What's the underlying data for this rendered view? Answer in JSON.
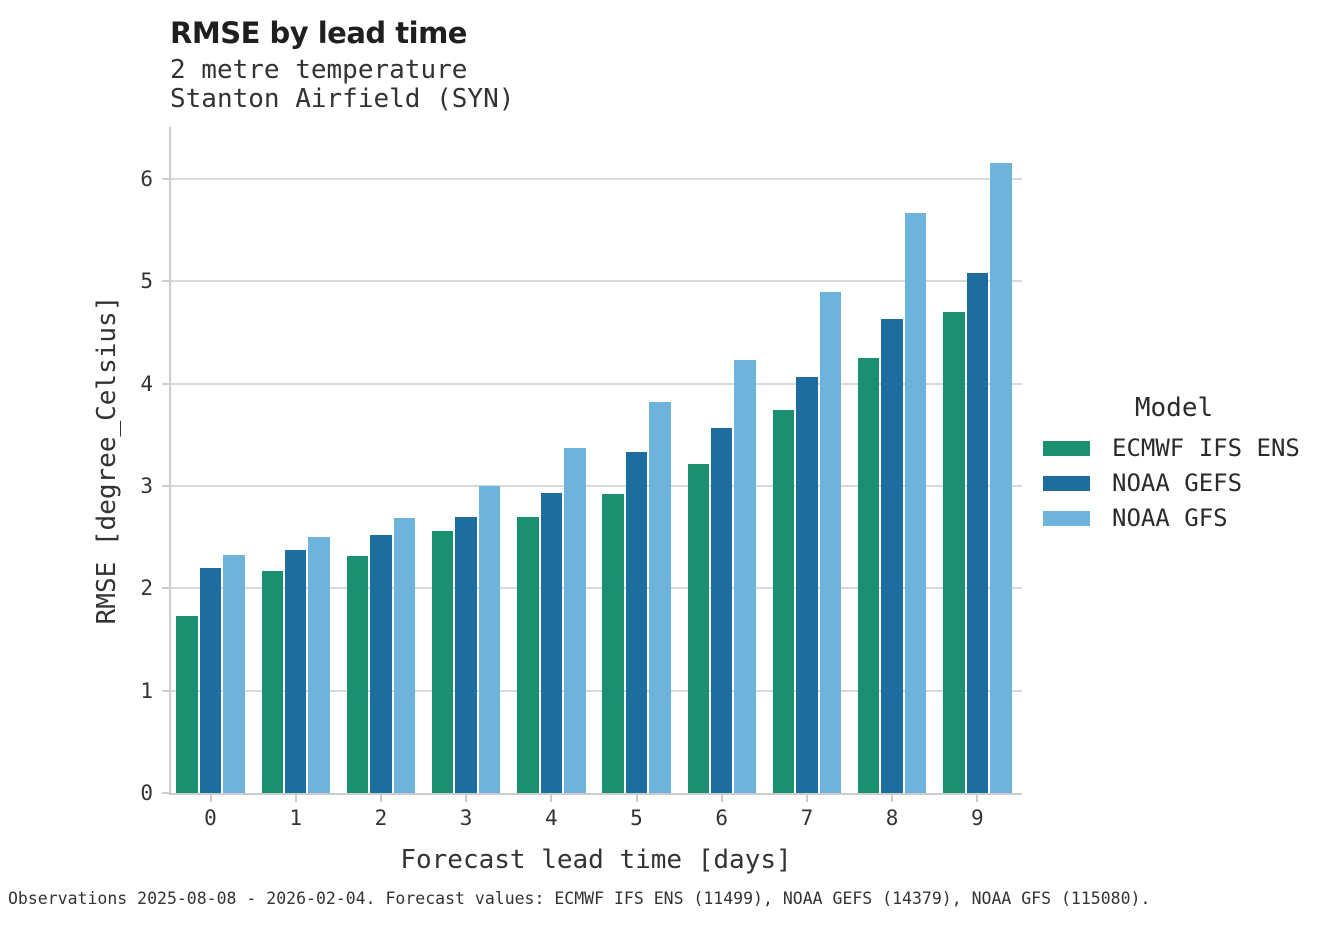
{
  "header": {
    "title": "RMSE by lead time",
    "subtitle_line1": "2 metre temperature",
    "subtitle_line2": "Stanton Airfield (SYN)"
  },
  "footer": {
    "text": "Observations 2025-08-08 - 2026-02-04. Forecast values: ECMWF IFS ENS (11499), NOAA GEFS (14379), NOAA GFS (115080)."
  },
  "colors": {
    "grid": "#d9d9d9",
    "spine": "#cccccc",
    "green": "#1a9070",
    "dark_blue": "#1d6e9e",
    "light_blue": "#6db3dc"
  },
  "chart_data": {
    "type": "bar",
    "title": "RMSE by lead time",
    "subtitle": [
      "2 metre temperature",
      "Stanton Airfield (SYN)"
    ],
    "categories": [
      "0",
      "1",
      "2",
      "3",
      "4",
      "5",
      "6",
      "7",
      "8",
      "9"
    ],
    "xlabel": "Forecast lead time [days]",
    "ylabel": "RMSE [degree_Celsius]",
    "ylim": [
      0,
      6.5
    ],
    "yticks": [
      0,
      1,
      2,
      3,
      4,
      5,
      6
    ],
    "grid": true,
    "legend_title": "Model",
    "legend_position": "right",
    "series": [
      {
        "name": "ECMWF IFS ENS",
        "color": "#1a9070",
        "values": [
          1.73,
          2.17,
          2.32,
          2.56,
          2.7,
          2.92,
          3.22,
          3.74,
          4.25,
          4.7
        ]
      },
      {
        "name": "NOAA GEFS",
        "color": "#1d6e9e",
        "values": [
          2.2,
          2.38,
          2.52,
          2.7,
          2.93,
          3.33,
          3.57,
          4.07,
          4.63,
          5.08
        ]
      },
      {
        "name": "NOAA GFS",
        "color": "#6db3dc",
        "values": [
          2.33,
          2.5,
          2.69,
          3.0,
          3.37,
          3.82,
          4.23,
          4.9,
          5.67,
          6.16
        ]
      }
    ]
  }
}
